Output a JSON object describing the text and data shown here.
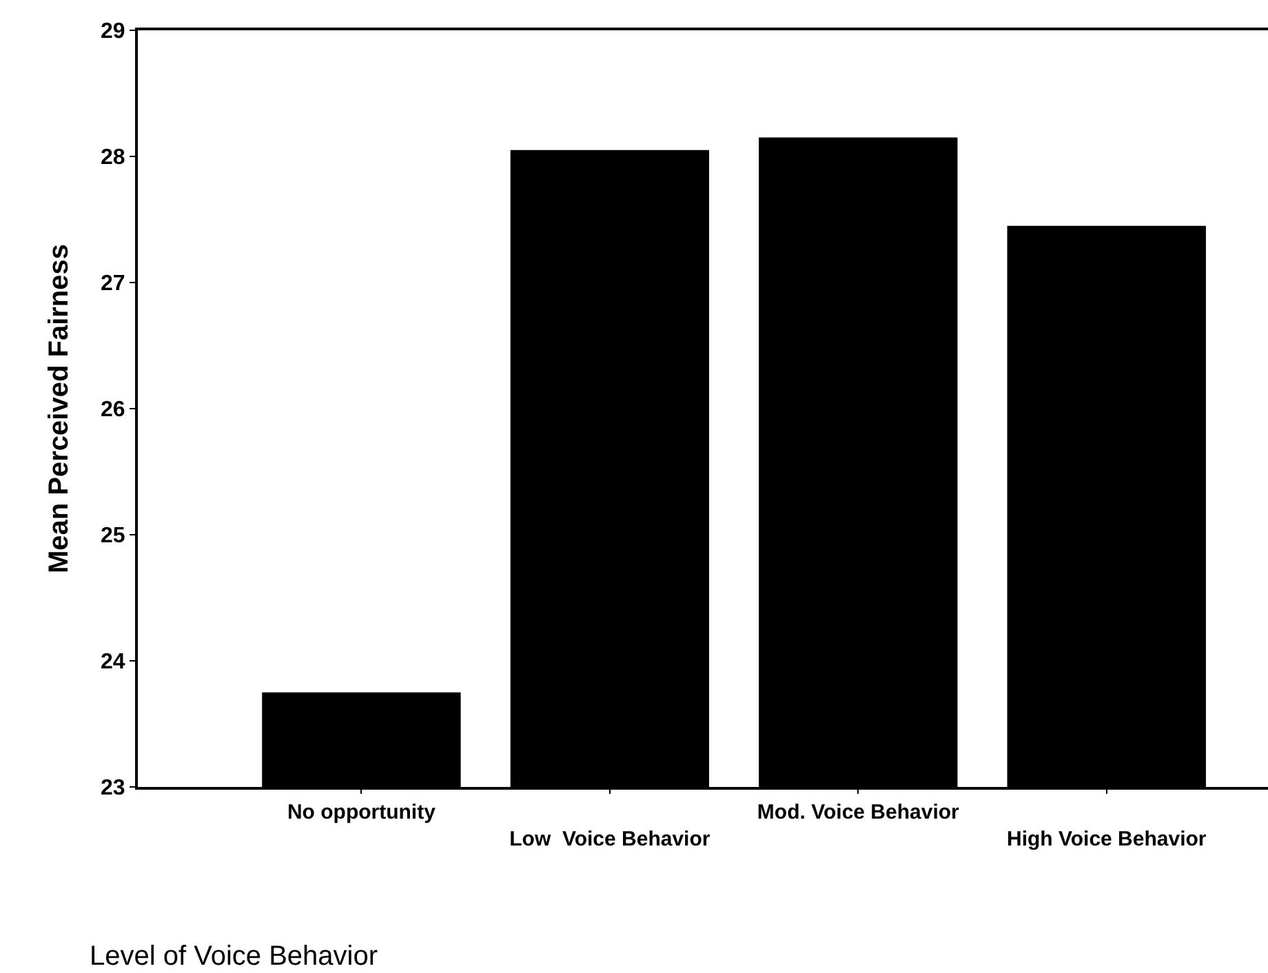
{
  "chart_data": {
    "type": "bar",
    "xlabel": "Level of Voice Behavior",
    "ylabel": "Mean Perceived Fairness",
    "categories": [
      "No opportunity",
      "Low  Voice Behavior",
      "Mod. Voice Behavior",
      "High Voice Behavior"
    ],
    "values": [
      23.75,
      28.05,
      28.15,
      27.45
    ],
    "color": "#000000",
    "ylim": [
      23,
      29
    ],
    "yticks": [
      23,
      24,
      25,
      26,
      27,
      28,
      29
    ],
    "grid": false
  }
}
